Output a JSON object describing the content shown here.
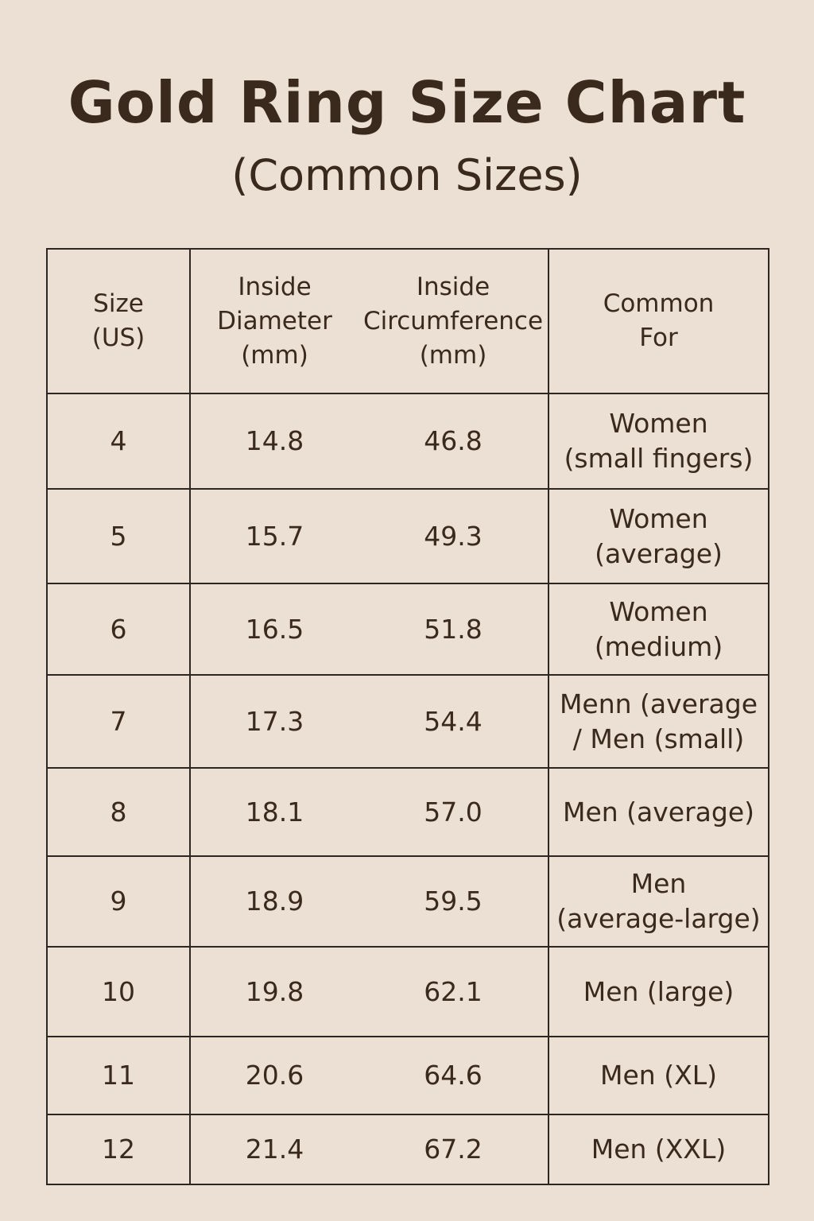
{
  "header": {
    "title": "Gold Ring Size Chart",
    "subtitle": "(Common Sizes)"
  },
  "table": {
    "columns": [
      [
        "Size",
        "(US)"
      ],
      [
        "Inside",
        "Diameter",
        "(mm)"
      ],
      [
        "Inside",
        "Circumference",
        "(mm)"
      ],
      [
        "Common",
        "For"
      ]
    ],
    "rows": [
      [
        "4",
        "14.8",
        "46.8",
        [
          "Women",
          "(small fingers)"
        ]
      ],
      [
        "5",
        "15.7",
        "49.3",
        [
          "Women",
          "(average)"
        ]
      ],
      [
        "6",
        "16.5",
        "51.8",
        [
          "Women",
          "(medium)"
        ]
      ],
      [
        "7",
        "17.3",
        "54.4",
        [
          "Menn (average",
          "/ Men (small)"
        ]
      ],
      [
        "8",
        "18.1",
        "57.0",
        [
          "Men (average)"
        ]
      ],
      [
        "9",
        "18.9",
        "59.5",
        [
          "Men",
          "(average-large)"
        ]
      ],
      [
        "10",
        "19.8",
        "62.1",
        [
          "Men (large)"
        ]
      ],
      [
        "11",
        "20.6",
        "64.6",
        [
          "Men (XL)"
        ]
      ],
      [
        "12",
        "21.4",
        "67.2",
        [
          "Men (XXL)"
        ]
      ]
    ]
  }
}
